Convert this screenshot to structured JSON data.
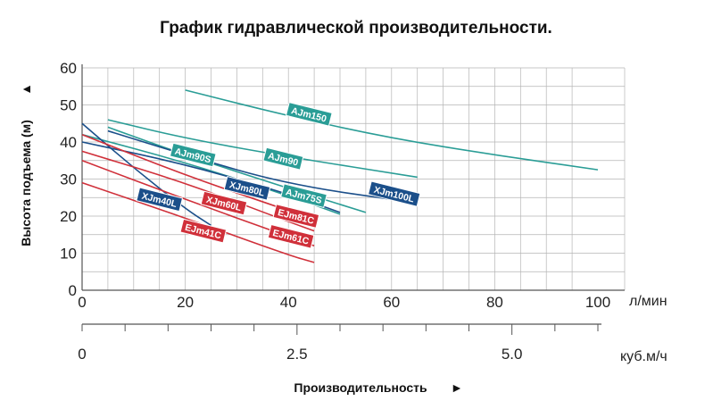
{
  "chart_data": {
    "type": "line",
    "title": "График гидравлической производительности.",
    "ylabel": "Высота подъема (м)",
    "ylabel_arrow": "▲",
    "xlabel": "Производительность",
    "xlabel_arrow": "►",
    "x_unit": "л/мин",
    "x2_unit": "куб.м/ч",
    "xlim": [
      0,
      100
    ],
    "ylim": [
      0,
      60
    ],
    "x_ticks": [
      0,
      20,
      40,
      60,
      80,
      100
    ],
    "y_ticks": [
      0,
      10,
      20,
      30,
      40,
      50,
      60
    ],
    "x2_ticks": [
      {
        "label": "0",
        "value": 0
      },
      {
        "label": "2.5",
        "value": 2.5
      },
      {
        "label": "5.0",
        "value": 5.0
      }
    ],
    "grid": true,
    "colors": {
      "teal": "#2a9d96",
      "navy": "#1b4f8a",
      "red": "#d0303a",
      "grid": "#b5b5b5",
      "axis": "#555555"
    },
    "series": [
      {
        "name": "AJm150",
        "color": "teal",
        "x": [
          20,
          40,
          60,
          80,
          100
        ],
        "y": [
          54,
          47,
          41,
          36.5,
          32.5
        ],
        "label_x": 44,
        "label_y": 47.5
      },
      {
        "name": "AJm90",
        "color": "teal",
        "x": [
          5,
          20,
          40,
          65
        ],
        "y": [
          46,
          41,
          36,
          30.5
        ],
        "label_x": 39,
        "label_y": 35.5
      },
      {
        "name": "AJm90S",
        "color": "teal",
        "x": [
          5,
          20,
          40,
          55
        ],
        "y": [
          44,
          36.5,
          27.5,
          21
        ],
        "label_x": 21.5,
        "label_y": 36.5
      },
      {
        "name": "AJm75S",
        "color": "teal",
        "x": [
          0,
          20,
          40,
          50
        ],
        "y": [
          42,
          34.5,
          25.5,
          20.5
        ],
        "label_x": 43,
        "label_y": 25.5
      },
      {
        "name": "XJm100L",
        "color": "navy",
        "x": [
          5,
          20,
          40,
          65
        ],
        "y": [
          43,
          36.5,
          28.5,
          23.5
        ],
        "label_x": 60.5,
        "label_y": 26
      },
      {
        "name": "XJm80L",
        "color": "navy",
        "x": [
          0,
          20,
          40,
          50
        ],
        "y": [
          40,
          34,
          26,
          21
        ],
        "label_x": 32,
        "label_y": 27.5
      },
      {
        "name": "XJm40L",
        "color": "navy",
        "x": [
          0,
          10,
          20,
          25
        ],
        "y": [
          45,
          33,
          22,
          17.5
        ],
        "label_x": 15,
        "label_y": 24.5
      },
      {
        "name": "EJm81C",
        "color": "red",
        "x": [
          0,
          20,
          40,
          45
        ],
        "y": [
          42,
          31,
          21.5,
          19
        ],
        "label_x": 41.5,
        "label_y": 20
      },
      {
        "name": "XJm60L",
        "color": "red",
        "x": [
          0,
          20,
          40,
          45
        ],
        "y": [
          37.5,
          29,
          18.5,
          16
        ],
        "label_x": 27.5,
        "label_y": 23.5
      },
      {
        "name": "EJm61C",
        "color": "red",
        "x": [
          0,
          20,
          40,
          45
        ],
        "y": [
          35,
          24.5,
          14.5,
          12
        ],
        "label_x": 40.5,
        "label_y": 14.5
      },
      {
        "name": "EJm41C",
        "color": "red",
        "x": [
          0,
          20,
          40,
          45
        ],
        "y": [
          29,
          19.5,
          9.5,
          7.5
        ],
        "label_x": 23.5,
        "label_y": 16
      }
    ]
  }
}
